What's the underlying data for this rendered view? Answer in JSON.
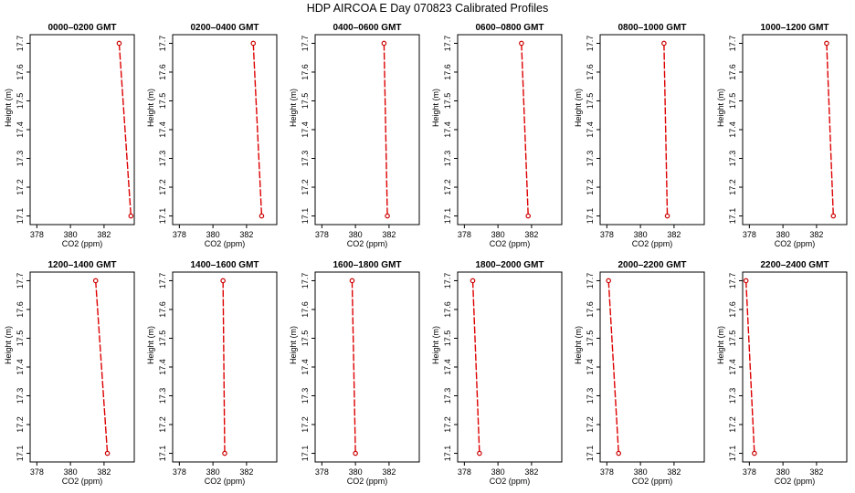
{
  "figure": {
    "title": "HDP AIRCOA E  Day 070823  Calibrated Profiles"
  },
  "style": {
    "line_color": "#dd0000",
    "marker_color": "#cc0000",
    "axis_color": "#000000"
  },
  "chart_data": [
    {
      "type": "line",
      "title": "0000–0200 GMT",
      "xlabel": "CO2 (ppm)",
      "ylabel": "Height (m)",
      "xlim": [
        377.6,
        383.8
      ],
      "ylim": [
        17.07,
        17.73
      ],
      "xticks": [
        378,
        380,
        382
      ],
      "yticks": [
        17.1,
        17.2,
        17.3,
        17.4,
        17.5,
        17.6,
        17.7
      ],
      "grid": false,
      "series": [
        {
          "marker": "open-circle",
          "linestyle": "dashed",
          "points": [
            {
              "x": 382.9,
              "y": 17.7
            },
            {
              "x": 383.6,
              "y": 17.1
            }
          ]
        }
      ]
    },
    {
      "type": "line",
      "title": "0200–0400 GMT",
      "xlabel": "CO2 (ppm)",
      "ylabel": "Height (m)",
      "xlim": [
        377.6,
        383.8
      ],
      "ylim": [
        17.07,
        17.73
      ],
      "xticks": [
        378,
        380,
        382
      ],
      "yticks": [
        17.1,
        17.2,
        17.3,
        17.4,
        17.5,
        17.6,
        17.7
      ],
      "grid": false,
      "series": [
        {
          "marker": "open-circle",
          "linestyle": "dashed",
          "points": [
            {
              "x": 382.4,
              "y": 17.7
            },
            {
              "x": 382.9,
              "y": 17.1
            }
          ]
        }
      ]
    },
    {
      "type": "line",
      "title": "0400–0600 GMT",
      "xlabel": "CO2 (ppm)",
      "ylabel": "Height (m)",
      "xlim": [
        377.6,
        383.8
      ],
      "ylim": [
        17.07,
        17.73
      ],
      "xticks": [
        378,
        380,
        382
      ],
      "yticks": [
        17.1,
        17.2,
        17.3,
        17.4,
        17.5,
        17.6,
        17.7
      ],
      "grid": false,
      "series": [
        {
          "marker": "open-circle",
          "linestyle": "dashed",
          "points": [
            {
              "x": 381.7,
              "y": 17.7
            },
            {
              "x": 381.9,
              "y": 17.1
            }
          ]
        }
      ]
    },
    {
      "type": "line",
      "title": "0600–0800 GMT",
      "xlabel": "CO2 (ppm)",
      "ylabel": "Height (m)",
      "xlim": [
        377.6,
        383.8
      ],
      "ylim": [
        17.07,
        17.73
      ],
      "xticks": [
        378,
        380,
        382
      ],
      "yticks": [
        17.1,
        17.2,
        17.3,
        17.4,
        17.5,
        17.6,
        17.7
      ],
      "grid": false,
      "series": [
        {
          "marker": "open-circle",
          "linestyle": "dashed",
          "points": [
            {
              "x": 381.4,
              "y": 17.7
            },
            {
              "x": 381.8,
              "y": 17.1
            }
          ]
        }
      ]
    },
    {
      "type": "line",
      "title": "0800–1000 GMT",
      "xlabel": "CO2 (ppm)",
      "ylabel": "Height (m)",
      "xlim": [
        377.6,
        383.8
      ],
      "ylim": [
        17.07,
        17.73
      ],
      "xticks": [
        378,
        380,
        382
      ],
      "yticks": [
        17.1,
        17.2,
        17.3,
        17.4,
        17.5,
        17.6,
        17.7
      ],
      "grid": false,
      "series": [
        {
          "marker": "open-circle",
          "linestyle": "dashed",
          "points": [
            {
              "x": 381.4,
              "y": 17.7
            },
            {
              "x": 381.6,
              "y": 17.1
            }
          ]
        }
      ]
    },
    {
      "type": "line",
      "title": "1000–1200 GMT",
      "xlabel": "CO2 (ppm)",
      "ylabel": "Height (m)",
      "xlim": [
        377.6,
        383.8
      ],
      "ylim": [
        17.07,
        17.73
      ],
      "xticks": [
        378,
        380,
        382
      ],
      "yticks": [
        17.1,
        17.2,
        17.3,
        17.4,
        17.5,
        17.6,
        17.7
      ],
      "grid": false,
      "series": [
        {
          "marker": "open-circle",
          "linestyle": "dashed",
          "points": [
            {
              "x": 382.6,
              "y": 17.7
            },
            {
              "x": 383.0,
              "y": 17.1
            }
          ]
        }
      ]
    },
    {
      "type": "line",
      "title": "1200–1400 GMT",
      "xlabel": "CO2 (ppm)",
      "ylabel": "Height (m)",
      "xlim": [
        377.6,
        383.8
      ],
      "ylim": [
        17.07,
        17.73
      ],
      "xticks": [
        378,
        380,
        382
      ],
      "yticks": [
        17.1,
        17.2,
        17.3,
        17.4,
        17.5,
        17.6,
        17.7
      ],
      "grid": false,
      "series": [
        {
          "marker": "open-circle",
          "linestyle": "dashed",
          "points": [
            {
              "x": 381.5,
              "y": 17.7
            },
            {
              "x": 382.2,
              "y": 17.1
            }
          ]
        }
      ]
    },
    {
      "type": "line",
      "title": "1400–1600 GMT",
      "xlabel": "CO2 (ppm)",
      "ylabel": "Height (m)",
      "xlim": [
        377.6,
        383.8
      ],
      "ylim": [
        17.07,
        17.73
      ],
      "xticks": [
        378,
        380,
        382
      ],
      "yticks": [
        17.1,
        17.2,
        17.3,
        17.4,
        17.5,
        17.6,
        17.7
      ],
      "grid": false,
      "series": [
        {
          "marker": "open-circle",
          "linestyle": "dashed",
          "points": [
            {
              "x": 380.6,
              "y": 17.7
            },
            {
              "x": 380.7,
              "y": 17.1
            }
          ]
        }
      ]
    },
    {
      "type": "line",
      "title": "1600–1800 GMT",
      "xlabel": "CO2 (ppm)",
      "ylabel": "Height (m)",
      "xlim": [
        377.6,
        383.8
      ],
      "ylim": [
        17.07,
        17.73
      ],
      "xticks": [
        378,
        380,
        382
      ],
      "yticks": [
        17.1,
        17.2,
        17.3,
        17.4,
        17.5,
        17.6,
        17.7
      ],
      "grid": false,
      "series": [
        {
          "marker": "open-circle",
          "linestyle": "dashed",
          "points": [
            {
              "x": 379.8,
              "y": 17.7
            },
            {
              "x": 380.0,
              "y": 17.1
            }
          ]
        }
      ]
    },
    {
      "type": "line",
      "title": "1800–2000 GMT",
      "xlabel": "CO2 (ppm)",
      "ylabel": "Height (m)",
      "xlim": [
        377.6,
        383.8
      ],
      "ylim": [
        17.07,
        17.73
      ],
      "xticks": [
        378,
        380,
        382
      ],
      "yticks": [
        17.1,
        17.2,
        17.3,
        17.4,
        17.5,
        17.6,
        17.7
      ],
      "grid": false,
      "series": [
        {
          "marker": "open-circle",
          "linestyle": "dashed",
          "points": [
            {
              "x": 378.5,
              "y": 17.7
            },
            {
              "x": 378.9,
              "y": 17.1
            }
          ]
        }
      ]
    },
    {
      "type": "line",
      "title": "2000–2200 GMT",
      "xlabel": "CO2 (ppm)",
      "ylabel": "Height (m)",
      "xlim": [
        377.6,
        383.8
      ],
      "ylim": [
        17.07,
        17.73
      ],
      "xticks": [
        378,
        380,
        382
      ],
      "yticks": [
        17.1,
        17.2,
        17.3,
        17.4,
        17.5,
        17.6,
        17.7
      ],
      "grid": false,
      "series": [
        {
          "marker": "open-circle",
          "linestyle": "dashed",
          "points": [
            {
              "x": 378.1,
              "y": 17.7
            },
            {
              "x": 378.7,
              "y": 17.1
            }
          ]
        }
      ]
    },
    {
      "type": "line",
      "title": "2200–2400 GMT",
      "xlabel": "CO2 (ppm)",
      "ylabel": "Height (m)",
      "xlim": [
        377.6,
        383.8
      ],
      "ylim": [
        17.07,
        17.73
      ],
      "xticks": [
        378,
        380,
        382
      ],
      "yticks": [
        17.1,
        17.2,
        17.3,
        17.4,
        17.5,
        17.6,
        17.7
      ],
      "grid": false,
      "series": [
        {
          "marker": "open-circle",
          "linestyle": "dashed",
          "points": [
            {
              "x": 377.8,
              "y": 17.7
            },
            {
              "x": 378.3,
              "y": 17.1
            }
          ]
        }
      ]
    }
  ]
}
